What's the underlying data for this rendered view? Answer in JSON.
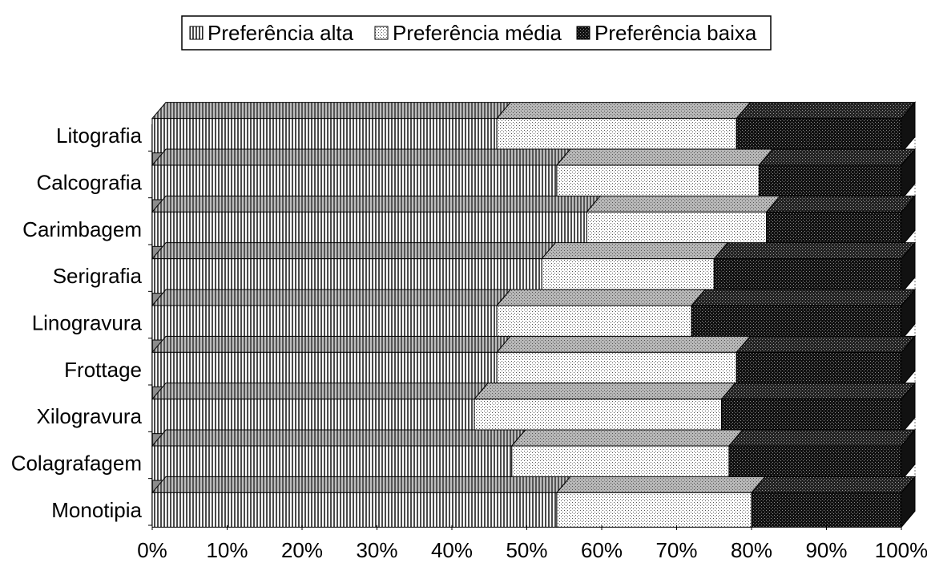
{
  "chart_data": {
    "type": "bar",
    "orientation": "horizontal",
    "stacked": "percent",
    "three_d": true,
    "categories": [
      "Litografia",
      "Calcografia",
      "Carimbagem",
      "Serigrafia",
      "Linogravura",
      "Frottage",
      "Xilogravura",
      "Colagrafagem",
      "Monotipia"
    ],
    "series": [
      {
        "name": "Preferência alta",
        "values": [
          46,
          54,
          58,
          52,
          46,
          46,
          43,
          48,
          54
        ]
      },
      {
        "name": "Preferência média",
        "values": [
          32,
          27,
          24,
          23,
          26,
          32,
          33,
          29,
          26
        ]
      },
      {
        "name": "Preferência baixa",
        "values": [
          22,
          19,
          18,
          25,
          28,
          22,
          24,
          23,
          20
        ]
      }
    ],
    "xlim": [
      0,
      100
    ],
    "x_ticks": [
      "0%",
      "10%",
      "20%",
      "30%",
      "40%",
      "50%",
      "60%",
      "70%",
      "80%",
      "90%",
      "100%"
    ],
    "grid": true,
    "legend_position": "top",
    "colors": {
      "alta": "#6e6e6e",
      "media": "#e8e8e8",
      "baixa": "#2a2a2a"
    }
  }
}
